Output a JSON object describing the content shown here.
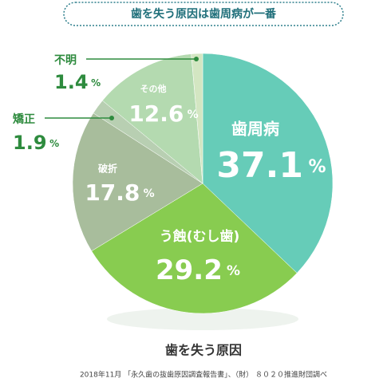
{
  "headline": "歯を失う原因は歯周病が一番",
  "chart_data": {
    "type": "pie",
    "title": "歯を失う原因",
    "source": "2018年11月 「永久歯の抜歯原因調査報告書」、（財） ８０２０推進財団調べ",
    "categories": [
      "歯周病",
      "う蝕(むし歯)",
      "破折",
      "矯正",
      "その他",
      "不明"
    ],
    "values": [
      37.1,
      29.2,
      17.8,
      1.9,
      12.6,
      1.4
    ],
    "value_labels": [
      "37.1%",
      "29.2%",
      "17.8%",
      "1.9%",
      "12.6%",
      "1.4%"
    ],
    "colors": [
      "#66ccb8",
      "#88cc50",
      "#a8bd9c",
      "#b8cfb2",
      "#b4dab0",
      "#d3e6c2"
    ]
  }
}
